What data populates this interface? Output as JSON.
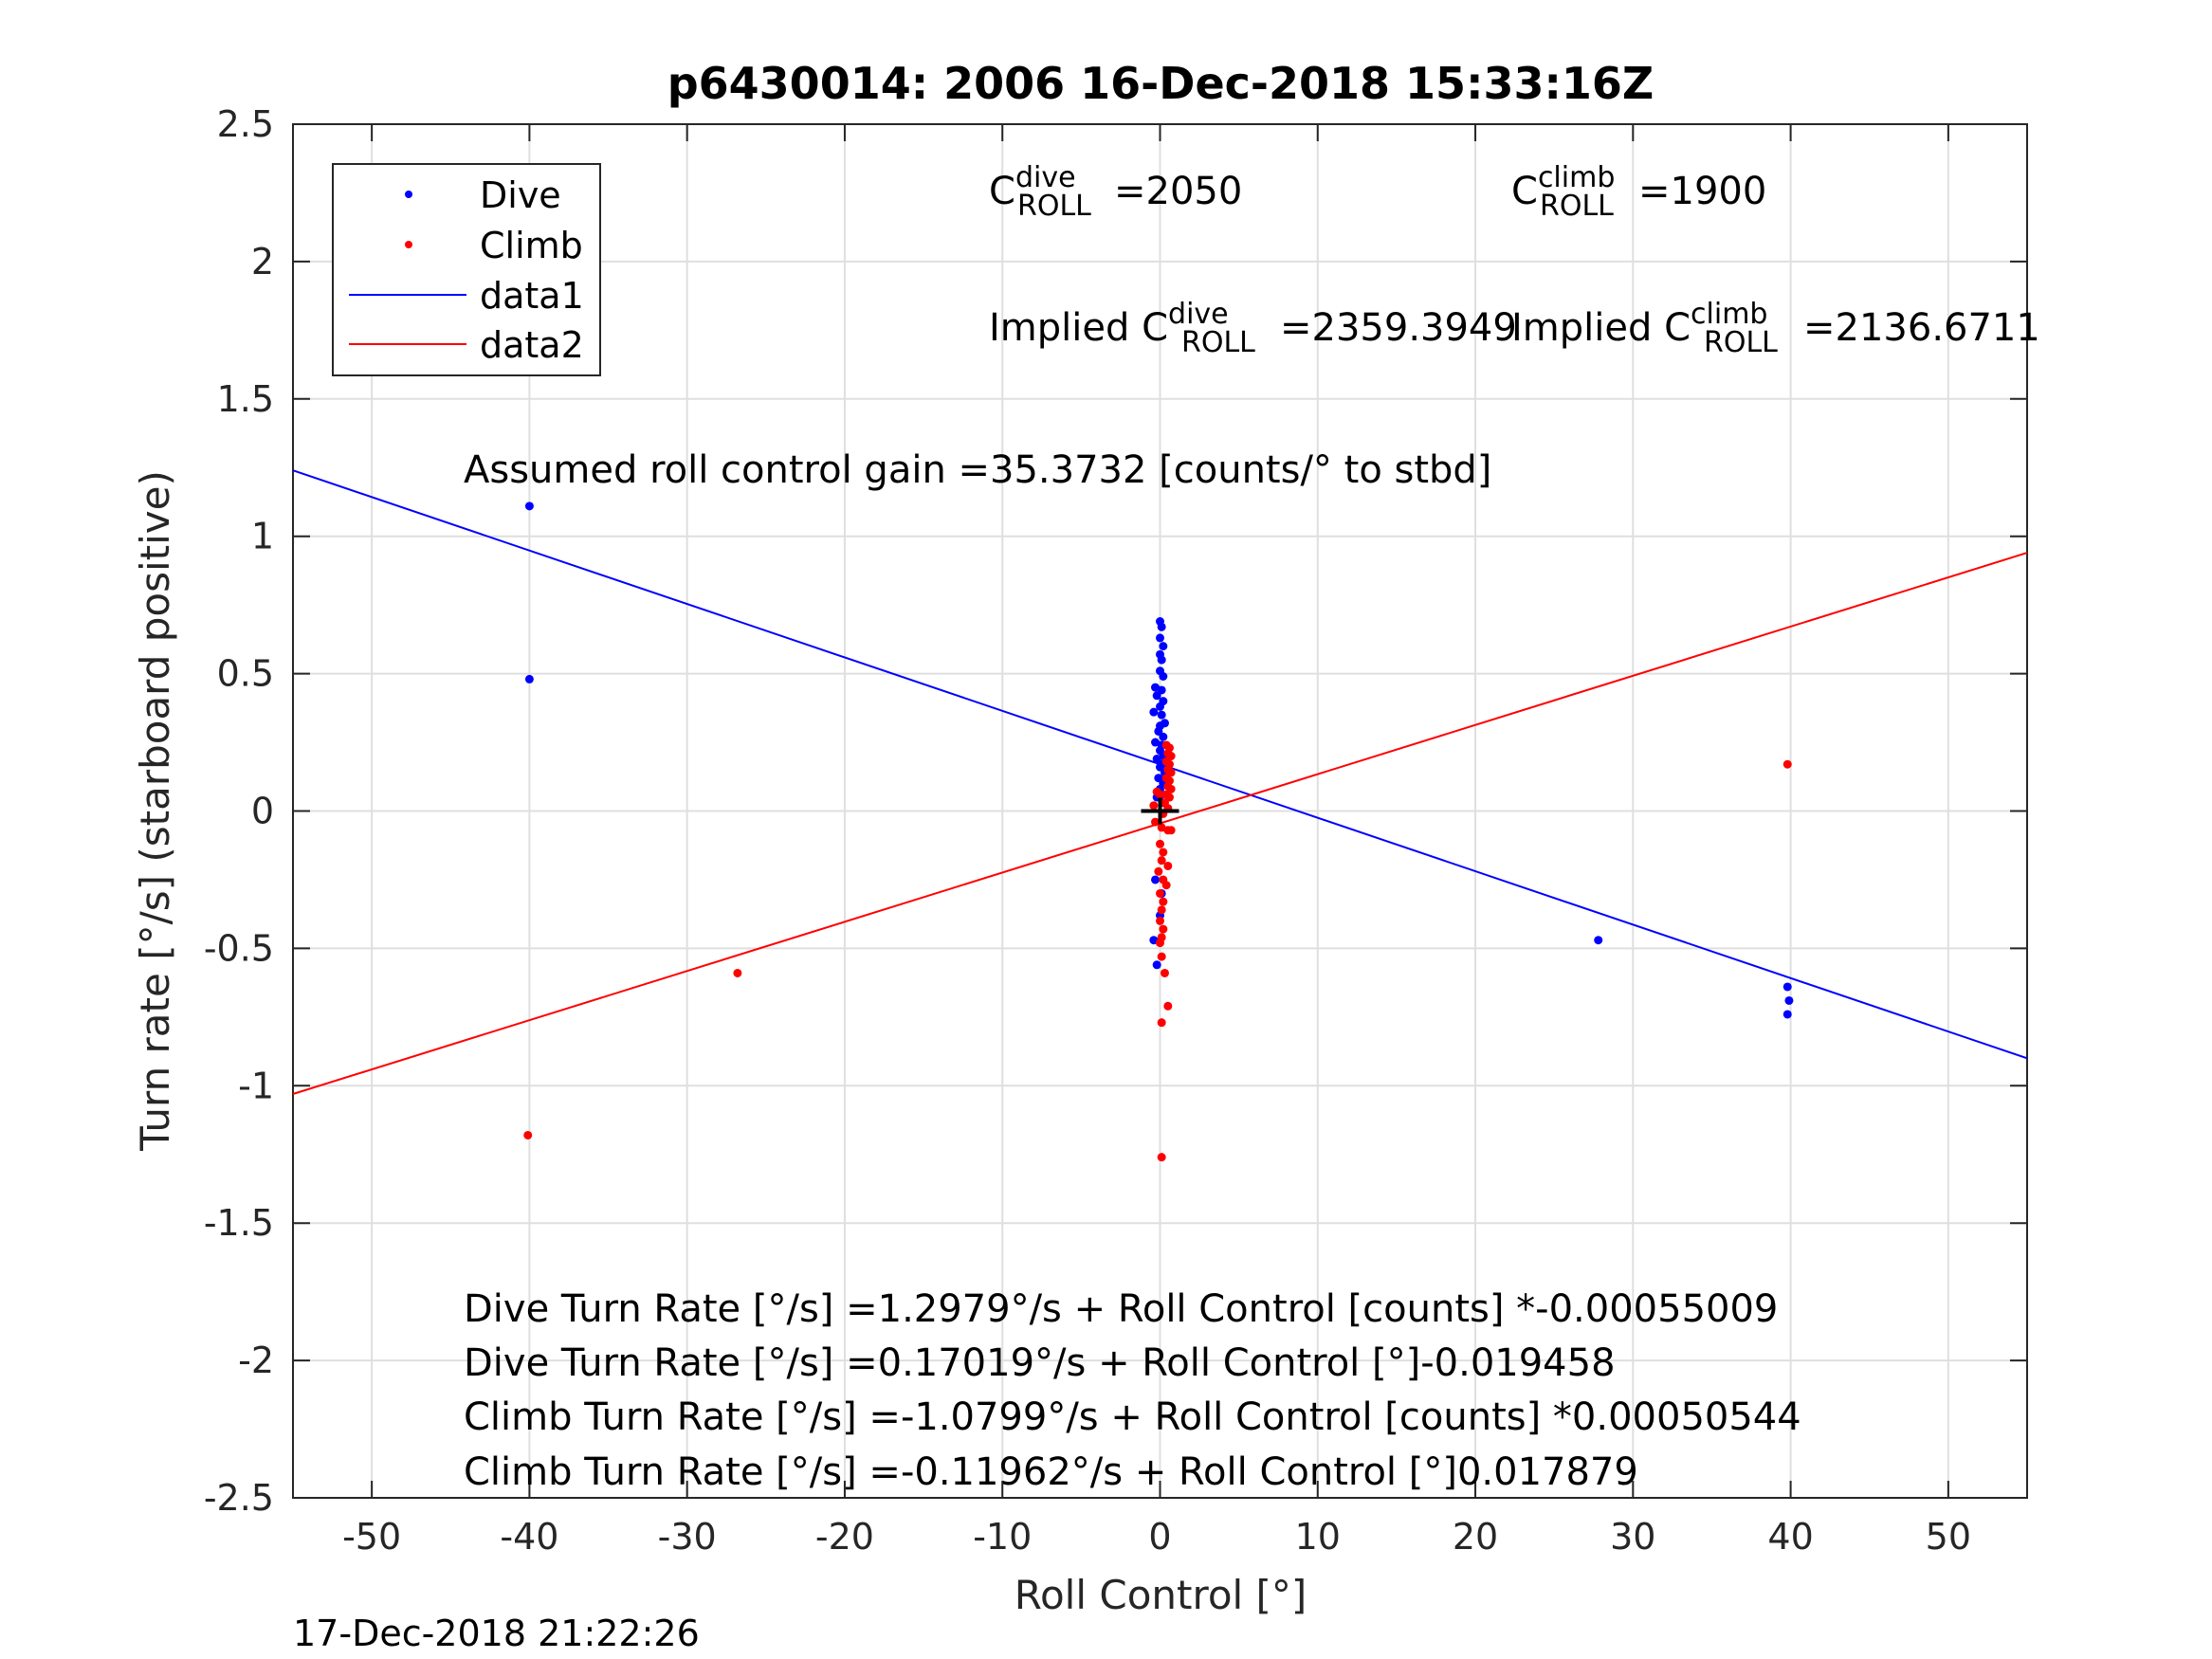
{
  "chart_data": {
    "type": "scatter",
    "title": "p6430014:  2006 16-Dec-2018 15:33:16Z",
    "xlabel": "Roll Control [°]",
    "ylabel": "Turn rate [°/s] (starboard positive)",
    "xlim": [
      -55,
      55
    ],
    "ylim": [
      -2.5,
      2.5
    ],
    "grid": true,
    "legend_location": "top-left",
    "xticks": [
      -50,
      -40,
      -30,
      -20,
      -10,
      0,
      10,
      20,
      30,
      40,
      50
    ],
    "xtick_labels": [
      "-50",
      "-40",
      "-30",
      "-20",
      "-10",
      "0",
      "10",
      "20",
      "30",
      "40",
      "50"
    ],
    "yticks": [
      -2.5,
      -2,
      -1.5,
      -1,
      -0.5,
      0,
      0.5,
      1,
      1.5,
      2,
      2.5
    ],
    "ytick_labels": [
      "-2.5",
      "-2",
      "-1.5",
      "-1",
      "-0.5",
      "0",
      "0.5",
      "1",
      "1.5",
      "2",
      "2.5"
    ],
    "series": [
      {
        "name": "Dive",
        "kind": "points",
        "color": "#0000ff",
        "points": [
          [
            -40,
            1.11
          ],
          [
            -40,
            0.48
          ],
          [
            0.0,
            0.69
          ],
          [
            0.1,
            0.67
          ],
          [
            0.0,
            0.63
          ],
          [
            0.2,
            0.6
          ],
          [
            0.0,
            0.57
          ],
          [
            0.1,
            0.55
          ],
          [
            0.0,
            0.51
          ],
          [
            0.2,
            0.49
          ],
          [
            -0.3,
            0.45
          ],
          [
            0.1,
            0.44
          ],
          [
            -0.2,
            0.42
          ],
          [
            0.2,
            0.4
          ],
          [
            0.0,
            0.38
          ],
          [
            -0.4,
            0.36
          ],
          [
            0.1,
            0.35
          ],
          [
            0.3,
            0.32
          ],
          [
            0.0,
            0.31
          ],
          [
            -0.1,
            0.29
          ],
          [
            0.2,
            0.27
          ],
          [
            -0.3,
            0.25
          ],
          [
            0.1,
            0.24
          ],
          [
            0.0,
            0.22
          ],
          [
            0.2,
            0.2
          ],
          [
            -0.2,
            0.19
          ],
          [
            0.1,
            0.17
          ],
          [
            0.0,
            0.16
          ],
          [
            0.3,
            0.14
          ],
          [
            -0.1,
            0.12
          ],
          [
            0.2,
            0.1
          ],
          [
            0.0,
            0.08
          ],
          [
            0.1,
            0.06
          ],
          [
            -0.2,
            0.05
          ],
          [
            0.2,
            0.03
          ],
          [
            -0.3,
            -0.25
          ],
          [
            0.1,
            -0.3
          ],
          [
            0.0,
            -0.38
          ],
          [
            -0.4,
            -0.47
          ],
          [
            -0.2,
            -0.56
          ],
          [
            27.8,
            -0.47
          ],
          [
            39.8,
            -0.64
          ],
          [
            39.9,
            -0.69
          ],
          [
            39.8,
            -0.74
          ]
        ]
      },
      {
        "name": "Climb",
        "kind": "points",
        "color": "#ff0000",
        "points": [
          [
            -40.1,
            -1.18
          ],
          [
            -26.8,
            -0.59
          ],
          [
            39.8,
            0.17
          ],
          [
            0.4,
            0.24
          ],
          [
            0.6,
            0.23
          ],
          [
            0.5,
            0.21
          ],
          [
            0.7,
            0.2
          ],
          [
            0.4,
            0.18
          ],
          [
            0.6,
            0.17
          ],
          [
            0.5,
            0.15
          ],
          [
            0.7,
            0.14
          ],
          [
            0.4,
            0.12
          ],
          [
            0.6,
            0.11
          ],
          [
            0.5,
            0.09
          ],
          [
            0.7,
            0.08
          ],
          [
            0.4,
            0.06
          ],
          [
            0.6,
            0.05
          ],
          [
            -0.2,
            0.07
          ],
          [
            0.0,
            0.06
          ],
          [
            0.3,
            0.03
          ],
          [
            -0.4,
            0.02
          ],
          [
            0.5,
            0.01
          ],
          [
            0.2,
            -0.01
          ],
          [
            -0.3,
            -0.04
          ],
          [
            0.1,
            -0.06
          ],
          [
            0.5,
            -0.07
          ],
          [
            0.7,
            -0.07
          ],
          [
            0.0,
            -0.12
          ],
          [
            0.2,
            -0.15
          ],
          [
            0.1,
            -0.18
          ],
          [
            0.5,
            -0.2
          ],
          [
            -0.1,
            -0.22
          ],
          [
            0.2,
            -0.25
          ],
          [
            0.4,
            -0.27
          ],
          [
            0.0,
            -0.3
          ],
          [
            0.2,
            -0.33
          ],
          [
            0.1,
            -0.36
          ],
          [
            0.0,
            -0.4
          ],
          [
            0.2,
            -0.43
          ],
          [
            0.1,
            -0.46
          ],
          [
            0.0,
            -0.48
          ],
          [
            0.1,
            -0.53
          ],
          [
            0.3,
            -0.59
          ],
          [
            0.5,
            -0.71
          ],
          [
            0.1,
            -0.77
          ],
          [
            0.1,
            -1.26
          ]
        ]
      },
      {
        "name": "data1",
        "kind": "line",
        "color": "#0000ff",
        "points": [
          [
            -55,
            1.24
          ],
          [
            55,
            -0.9
          ]
        ]
      },
      {
        "name": "data2",
        "kind": "line",
        "color": "#ff0000",
        "points": [
          [
            -55,
            -1.03
          ],
          [
            55,
            0.94
          ]
        ]
      },
      {
        "name": "",
        "kind": "cross-marker",
        "color": "#000000",
        "points": [
          [
            0,
            0
          ]
        ]
      }
    ],
    "annotations": {
      "c_dive": {
        "prefix": "C",
        "sup": "dive",
        "sub": "ROLL",
        "value": "=2050"
      },
      "c_climb": {
        "prefix": "C",
        "sup": "climb",
        "sub": "ROLL",
        "value": "=1900"
      },
      "implied_dive": {
        "prefix": "Implied C",
        "sup": "dive",
        "sub": "ROLL",
        "value": "=2359.3949"
      },
      "implied_climb": {
        "prefix": "Implied C",
        "sup": "climb",
        "sub": "ROLL",
        "value": "=2136.6711"
      },
      "gain": "Assumed roll control gain =35.3732 [counts/° to stbd]",
      "eq1": "Dive Turn Rate [°/s] =1.2979°/s + Roll Control [counts] *-0.00055009",
      "eq2": "Dive Turn Rate [°/s] =0.17019°/s + Roll Control [°]-0.019458",
      "eq3": "Climb Turn Rate [°/s] =-1.0799°/s + Roll Control [counts] *0.00050544",
      "eq4": "Climb Turn Rate [°/s] =-0.11962°/s + Roll Control [°]0.017879"
    }
  },
  "footer_timestamp": "17-Dec-2018 21:22:26"
}
